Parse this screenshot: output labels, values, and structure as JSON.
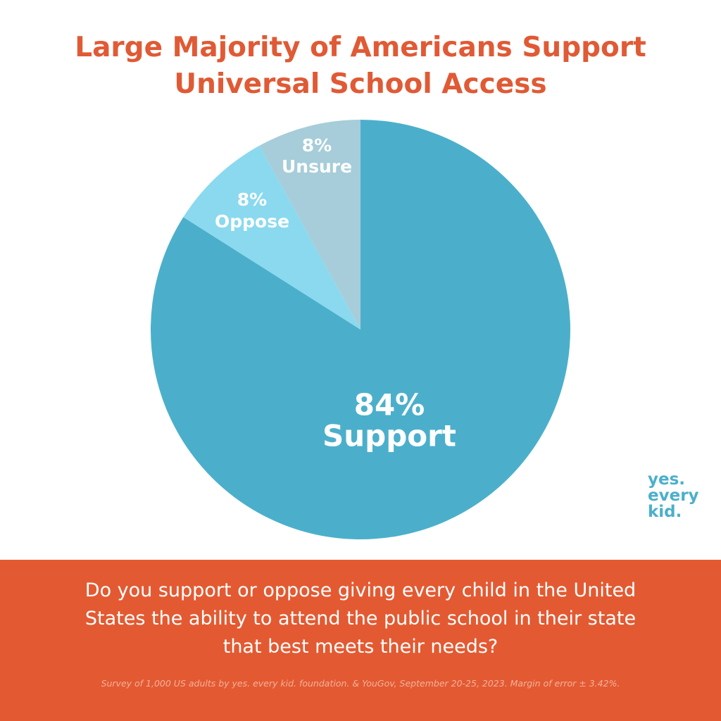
{
  "chart_data": {
    "type": "pie",
    "title": "Large Majority of Americans Support Universal School Access",
    "categories": [
      "Support",
      "Oppose",
      "Unsure"
    ],
    "values": [
      84,
      8,
      8
    ],
    "value_labels": [
      "84%",
      "8%",
      "8%"
    ],
    "colors": [
      "#4bafcb",
      "#8ad9ef",
      "#a6cdd9"
    ],
    "question": "Do you support or oppose giving every child in the United States the ability to attend the public school in their state that best meets their needs?",
    "source": "Survey of 1,000 US adults by yes. every kid. foundation. & YouGov, September 20-25, 2023. Margin of error ± 3.42%.",
    "logo": [
      "yes.",
      "every",
      "kid."
    ]
  }
}
